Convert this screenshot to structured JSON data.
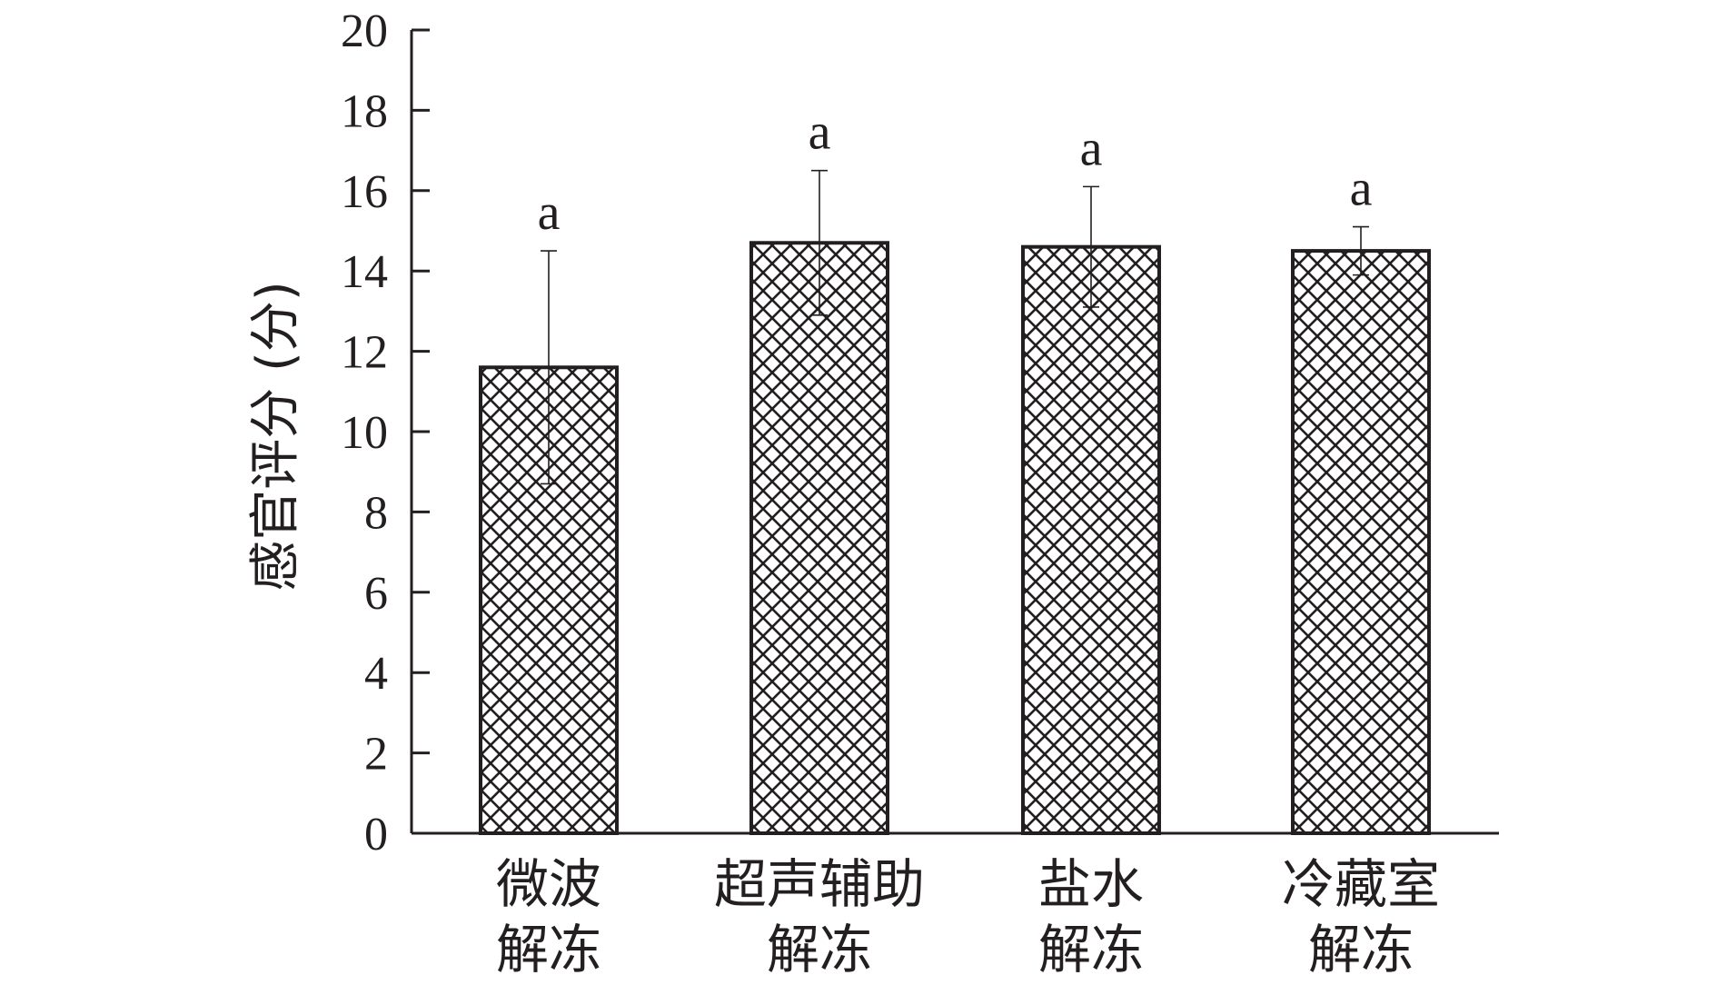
{
  "chart_data": {
    "type": "bar",
    "categories": [
      [
        "微波",
        "解冻"
      ],
      [
        "超声辅助",
        "解冻"
      ],
      [
        "盐水",
        "解冻"
      ],
      [
        "冷藏室",
        "解冻"
      ]
    ],
    "values": [
      11.6,
      14.7,
      14.6,
      14.5
    ],
    "error": [
      2.9,
      1.8,
      1.5,
      0.6
    ],
    "significance": [
      "a",
      "a",
      "a",
      "a"
    ],
    "ylabel": "感官评分 (分)",
    "xlabel": "",
    "ylim": [
      0,
      20
    ],
    "yticks": [
      "0",
      "2",
      "4",
      "6",
      "8",
      "10",
      "12",
      "14",
      "16",
      "18",
      "20"
    ],
    "bar_fill": "crosshatch",
    "colors": {
      "ink": "#231f20",
      "background": "#ffffff"
    },
    "grid": false,
    "legend": "none"
  }
}
